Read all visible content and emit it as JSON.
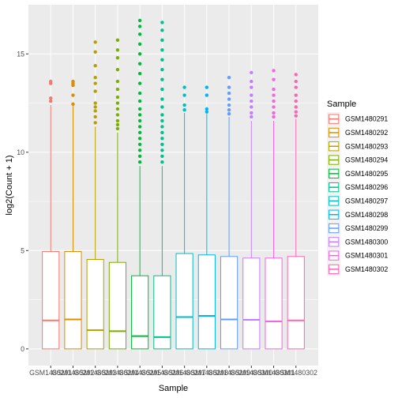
{
  "chart_data": {
    "type": "boxplot",
    "title": "",
    "xlabel": "Sample",
    "ylabel": "log2(Count + 1)",
    "ylim": [
      -0.85,
      17.5
    ],
    "yticks": [
      0,
      5,
      10,
      15
    ],
    "grid": true,
    "legend": {
      "title": "Sample",
      "placement": "right"
    },
    "categories": [
      "GSM1480291",
      "GSM1480292",
      "GSM1480293",
      "GSM1480294",
      "GSM1480295",
      "GSM1480296",
      "GSM1480297",
      "GSM1480298",
      "GSM1480299",
      "GSM1480300",
      "GSM1480301",
      "GSM1480302"
    ],
    "series": [
      {
        "name": "GSM1480291",
        "color": "#F8766D",
        "min": 0,
        "q1": 0,
        "median": 1.45,
        "q3": 4.95,
        "whisker_high": 12.4,
        "outliers": [
          12.6,
          12.75,
          13.5,
          13.6
        ]
      },
      {
        "name": "GSM1480292",
        "color": "#DE8C00",
        "min": 0,
        "q1": 0,
        "median": 1.5,
        "q3": 4.95,
        "whisker_high": 12.35,
        "outliers": [
          12.45,
          12.9,
          13.4,
          13.5,
          13.6
        ]
      },
      {
        "name": "GSM1480293",
        "color": "#B79F00",
        "min": 0,
        "q1": 0,
        "median": 0.95,
        "q3": 4.55,
        "whisker_high": 11.3,
        "outliers": [
          11.5,
          11.8,
          12.1,
          12.3,
          12.5,
          13.1,
          13.5,
          13.8,
          14.4,
          15.1,
          15.6
        ]
      },
      {
        "name": "GSM1480294",
        "color": "#7CAE00",
        "min": 0,
        "q1": 0,
        "median": 0.9,
        "q3": 4.4,
        "whisker_high": 11.0,
        "outliers": [
          11.2,
          11.4,
          11.6,
          11.9,
          12.2,
          12.5,
          12.8,
          13.2,
          13.6,
          14.2,
          14.8,
          15.2,
          15.7
        ]
      },
      {
        "name": "GSM1480295",
        "color": "#00BA38",
        "min": 0,
        "q1": 0,
        "median": 0.65,
        "q3": 3.72,
        "whisker_high": 9.3,
        "outliers": [
          9.5,
          9.8,
          10.1,
          10.4,
          10.7,
          11.0,
          11.3,
          11.6,
          11.9,
          12.2,
          12.6,
          13.0,
          13.5,
          14.0,
          14.5,
          15.0,
          15.5,
          16.0,
          16.4,
          16.7
        ]
      },
      {
        "name": "GSM1480296",
        "color": "#00C08B",
        "min": 0,
        "q1": 0,
        "median": 0.6,
        "q3": 3.72,
        "whisker_high": 9.3,
        "outliers": [
          9.5,
          9.8,
          10.1,
          10.4,
          10.7,
          11.0,
          11.3,
          11.6,
          11.9,
          12.3,
          12.7,
          13.2,
          13.7,
          14.2,
          14.7,
          15.2,
          15.7,
          16.2,
          16.6
        ]
      },
      {
        "name": "GSM1480297",
        "color": "#00BFC4",
        "min": 0,
        "q1": 0,
        "median": 1.62,
        "q3": 4.85,
        "whisker_high": 12.0,
        "outliers": [
          12.15,
          12.4,
          12.9,
          13.3
        ]
      },
      {
        "name": "GSM1480298",
        "color": "#00B4F0",
        "min": 0,
        "q1": 0,
        "median": 1.68,
        "q3": 4.78,
        "whisker_high": 11.95,
        "outliers": [
          12.05,
          12.2,
          12.9,
          13.3
        ]
      },
      {
        "name": "GSM1480299",
        "color": "#619CFF",
        "min": 0,
        "q1": 0,
        "median": 1.5,
        "q3": 4.7,
        "whisker_high": 11.8,
        "outliers": [
          11.95,
          12.15,
          12.4,
          12.7,
          13.0,
          13.3,
          13.8
        ]
      },
      {
        "name": "GSM1480300",
        "color": "#C77CFF",
        "min": 0,
        "q1": 0,
        "median": 1.48,
        "q3": 4.62,
        "whisker_high": 11.6,
        "outliers": [
          11.8,
          12.0,
          12.3,
          12.6,
          12.9,
          13.3,
          13.6,
          14.05
        ]
      },
      {
        "name": "GSM1480301",
        "color": "#F564E3",
        "min": 0,
        "q1": 0,
        "median": 1.4,
        "q3": 4.62,
        "whisker_high": 11.6,
        "outliers": [
          11.8,
          12.0,
          12.3,
          12.6,
          12.9,
          13.2,
          13.7,
          14.15
        ]
      },
      {
        "name": "GSM1480302",
        "color": "#FF64B0",
        "min": 0,
        "q1": 0,
        "median": 1.45,
        "q3": 4.7,
        "whisker_high": 11.7,
        "outliers": [
          11.85,
          12.05,
          12.3,
          12.6,
          12.9,
          13.3,
          13.6,
          13.95
        ]
      }
    ]
  }
}
